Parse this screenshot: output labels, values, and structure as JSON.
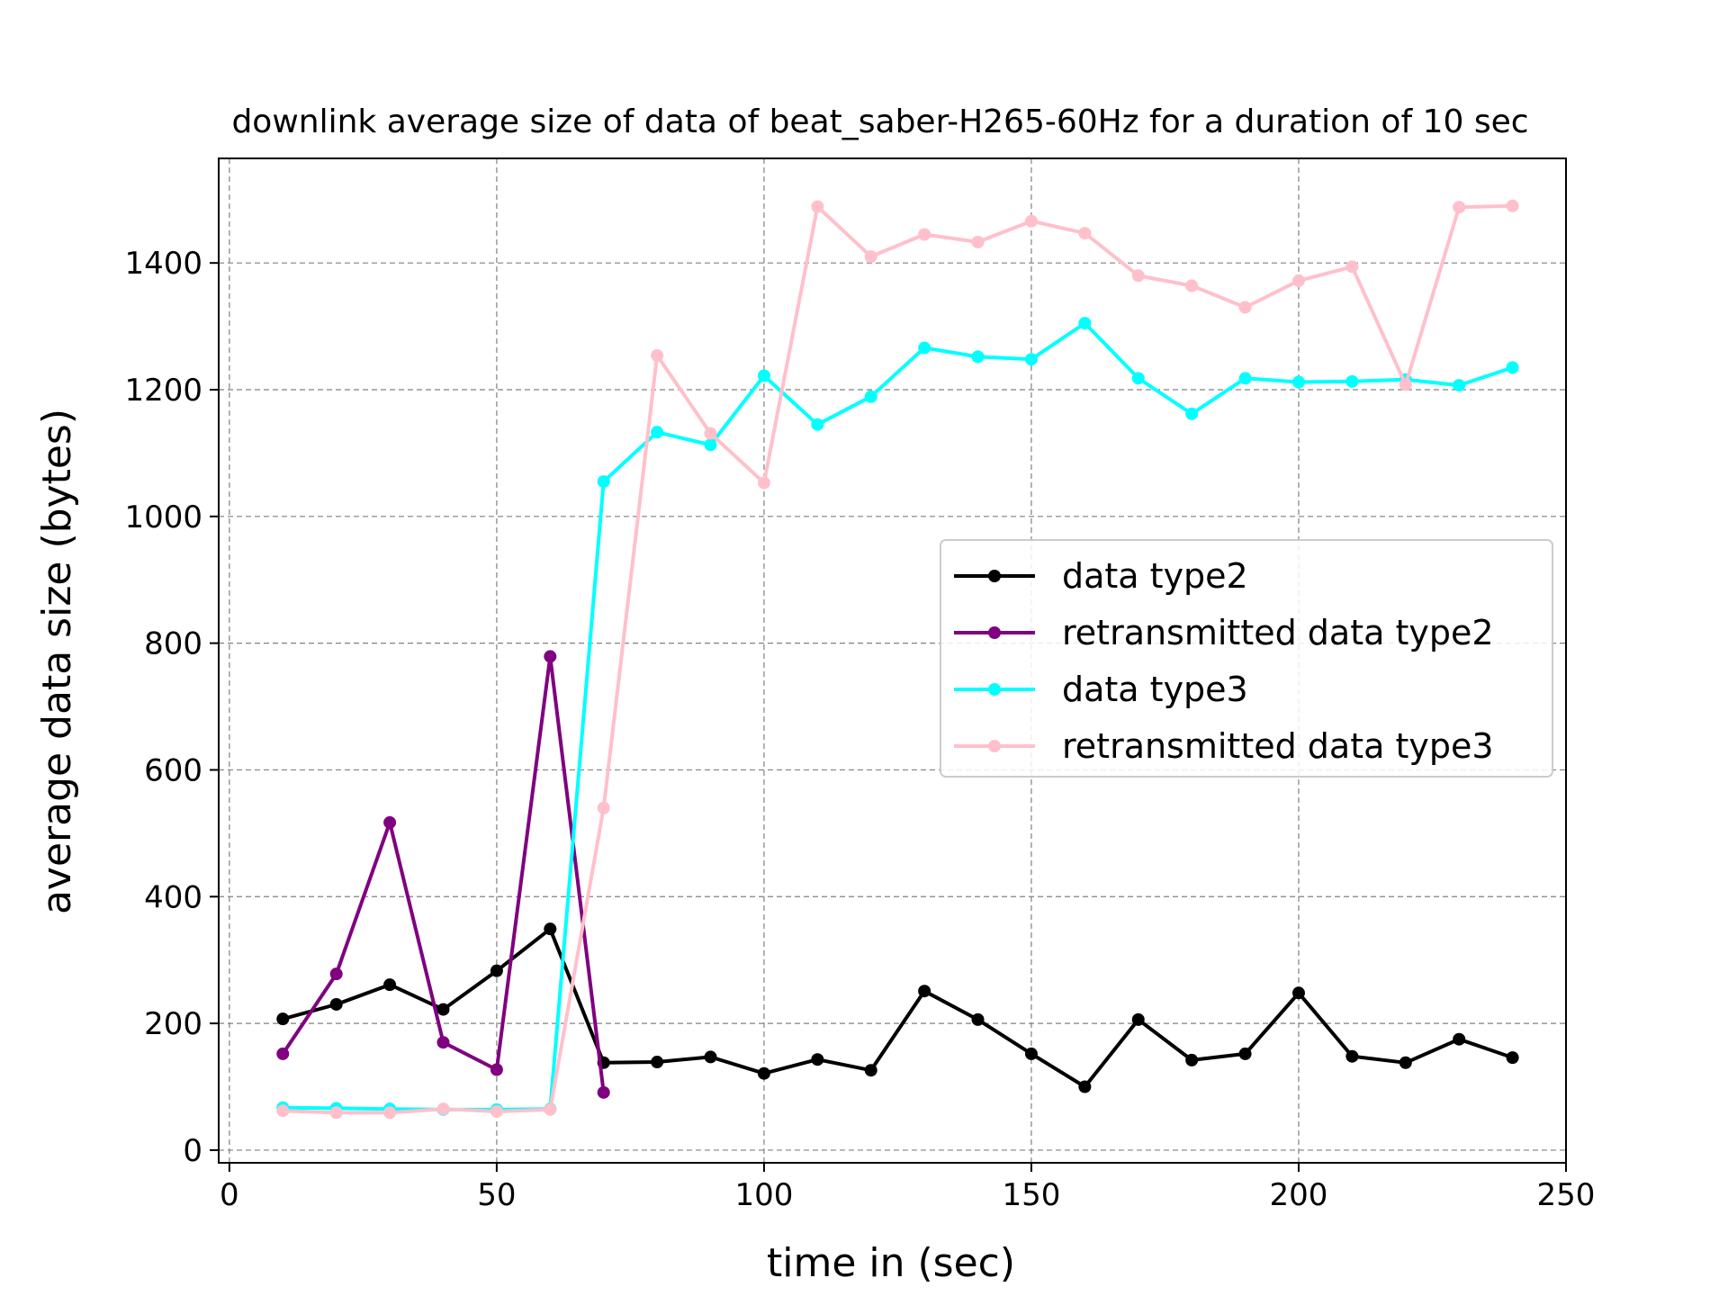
{
  "chart_data": {
    "type": "line",
    "title": "downlink average size of data of beat_saber-H265-60Hz for a duration of 10 sec",
    "xlabel": "time in (sec)",
    "ylabel": "average data size (bytes)",
    "xlim": [
      -2,
      250
    ],
    "ylim": [
      -20,
      1565
    ],
    "xticks": [
      0,
      50,
      100,
      150,
      200,
      250
    ],
    "yticks": [
      0,
      200,
      400,
      600,
      800,
      1000,
      1200,
      1400
    ],
    "grid": true,
    "legend_position": "center-right",
    "series": [
      {
        "name": "data type2",
        "color": "#000000",
        "x": [
          10,
          20,
          30,
          40,
          50,
          60,
          70,
          80,
          90,
          100,
          110,
          120,
          130,
          140,
          150,
          160,
          170,
          180,
          190,
          200,
          210,
          220,
          230,
          240
        ],
        "values": [
          207,
          230,
          261,
          222,
          283,
          349,
          138,
          139,
          147,
          121,
          143,
          126,
          251,
          206,
          152,
          100,
          206,
          142,
          152,
          248,
          148,
          138,
          175,
          146
        ]
      },
      {
        "name": "retransmitted data type2",
        "color": "#800080",
        "x": [
          10,
          20,
          30,
          40,
          50,
          60,
          70
        ],
        "values": [
          152,
          278,
          517,
          170,
          127,
          779,
          91
        ]
      },
      {
        "name": "data type3",
        "color": "#00ffff",
        "x": [
          10,
          20,
          30,
          40,
          50,
          60,
          70,
          80,
          90,
          100,
          110,
          120,
          130,
          140,
          150,
          160,
          170,
          180,
          190,
          200,
          210,
          220,
          230,
          240
        ],
        "values": [
          67,
          66,
          65,
          64,
          64,
          65,
          1055,
          1133,
          1113,
          1222,
          1145,
          1189,
          1266,
          1252,
          1248,
          1305,
          1218,
          1162,
          1218,
          1212,
          1213,
          1216,
          1207,
          1235
        ]
      },
      {
        "name": "retransmitted data type3",
        "color": "#ffc0cb",
        "x": [
          10,
          20,
          30,
          40,
          50,
          60,
          70,
          80,
          90,
          100,
          110,
          120,
          130,
          140,
          150,
          160,
          170,
          180,
          190,
          200,
          210,
          220,
          230,
          240
        ],
        "values": [
          62,
          59,
          59,
          65,
          61,
          64,
          540,
          1254,
          1131,
          1053,
          1489,
          1410,
          1445,
          1433,
          1466,
          1447,
          1380,
          1364,
          1330,
          1372,
          1394,
          1208,
          1488,
          1490
        ]
      }
    ]
  }
}
